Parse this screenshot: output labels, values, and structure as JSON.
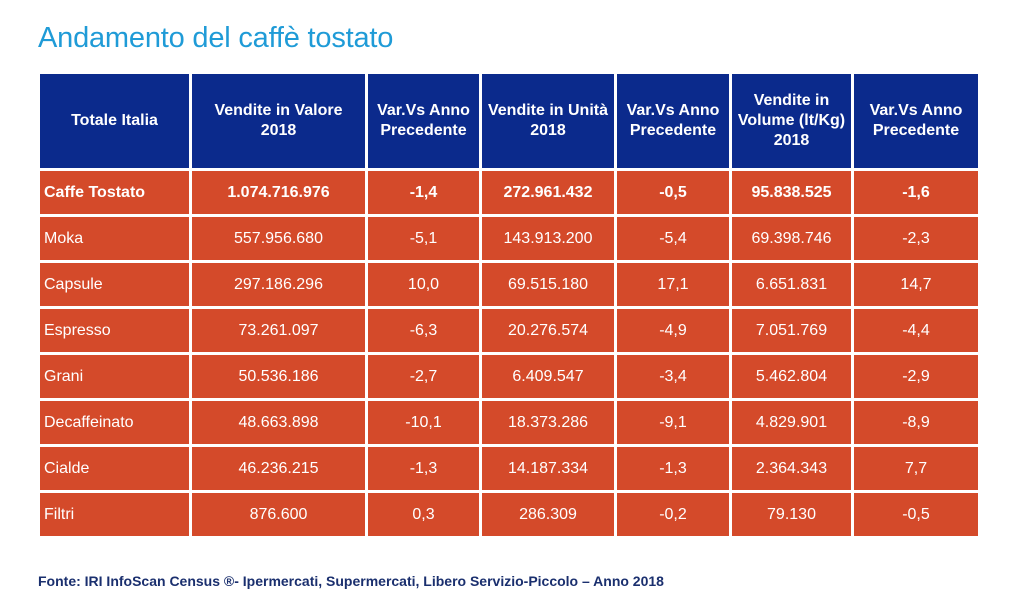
{
  "title": "Andamento del caffè tostato",
  "table": {
    "headers": [
      "Totale Italia",
      "Vendite in Valore 2018",
      "Var.Vs Anno Precedente",
      "Vendite in Unità 2018",
      "Var.Vs Anno Precedente",
      "Vendite in Volume (lt/Kg) 2018",
      "Var.Vs Anno Precedente"
    ],
    "rows": [
      [
        "Caffe Tostato",
        "1.074.716.976",
        "-1,4",
        "272.961.432",
        "-0,5",
        "95.838.525",
        "-1,6"
      ],
      [
        "Moka",
        "557.956.680",
        "-5,1",
        "143.913.200",
        "-5,4",
        "69.398.746",
        "-2,3"
      ],
      [
        "Capsule",
        "297.186.296",
        "10,0",
        "69.515.180",
        "17,1",
        "6.651.831",
        "14,7"
      ],
      [
        "Espresso",
        "73.261.097",
        "-6,3",
        "20.276.574",
        "-4,9",
        "7.051.769",
        "-4,4"
      ],
      [
        "Grani",
        "50.536.186",
        "-2,7",
        "6.409.547",
        "-3,4",
        "5.462.804",
        "-2,9"
      ],
      [
        "Decaffeinato",
        "48.663.898",
        "-10,1",
        "18.373.286",
        "-9,1",
        "4.829.901",
        "-8,9"
      ],
      [
        "Cialde",
        "46.236.215",
        "-1,3",
        "14.187.334",
        "-1,3",
        "2.364.343",
        "7,7"
      ],
      [
        "Filtri",
        "876.600",
        "0,3",
        "286.309",
        "-0,2",
        "79.130",
        "-0,5"
      ]
    ]
  },
  "source": "Fonte: IRI InfoScan Census ®- Ipermercati, Supermercati, Libero Servizio-Piccolo – Anno 2018",
  "colors": {
    "title": "#1f9bd7",
    "header_bg": "#0b2a8c",
    "cell_bg": "#d44a2a",
    "source_text": "#1a2f6e"
  }
}
